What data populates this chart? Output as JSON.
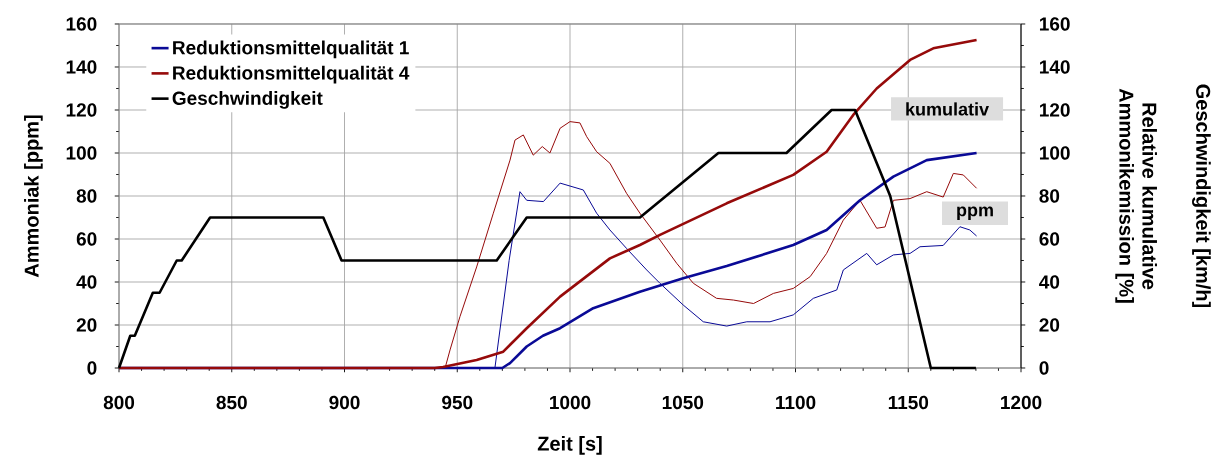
{
  "chart_data": {
    "type": "line",
    "xlabel": "Zeit [s]",
    "ylabel": "Ammoniak [ppm]",
    "y2label": "Relative kumulative Ammonikemission [%]",
    "y3label": "Geschwindigkeit [km/h]",
    "xlim": [
      800,
      1200
    ],
    "xticks": [
      800,
      850,
      900,
      950,
      1000,
      1050,
      1100,
      1150,
      1200
    ],
    "ylim": [
      0,
      160
    ],
    "yticks": [
      0,
      20,
      40,
      60,
      80,
      100,
      120,
      140,
      160
    ],
    "y2lim": [
      0,
      160
    ],
    "y2ticks": [
      0,
      20,
      40,
      60,
      80,
      100,
      120,
      140,
      160
    ],
    "grid": true,
    "legend": "top left",
    "series": [
      {
        "color": "#0a0a96",
        "axis": "y",
        "x": [
          800,
          966.7,
          973,
          977.8,
          980.8,
          988.2,
          995.6,
          1005.9,
          1011.8,
          1017.7,
          1025.1,
          1034,
          1039.9,
          1050.2,
          1059.1,
          1069.5,
          1078.4,
          1088.7,
          1099,
          1107.9,
          1118.3,
          1121.2,
          1131.6,
          1136,
          1143.4,
          1150.8,
          1155.2,
          1165.5,
          1172.9,
          1177.3,
          1180.3
        ],
        "values": [
          0,
          0,
          50,
          82,
          78,
          77.4,
          86,
          82.8,
          72,
          64.2,
          55.6,
          45.6,
          39.4,
          29.3,
          21.5,
          19.5,
          21.5,
          21.5,
          24.7,
          32.4,
          36.3,
          45.6,
          53.3,
          48,
          52.6,
          53.3,
          56.4,
          57,
          65.7,
          64.2,
          61.4
        ]
      },
      {
        "color": "#960a0a",
        "axis": "y",
        "x": [
          800,
          944.6,
          946.8,
          951.2,
          958.6,
          966,
          973.4,
          975.6,
          979.3,
          983.7,
          987.7,
          991.1,
          995.6,
          1000,
          1004.4,
          1007.4,
          1011.8,
          1017.7,
          1025.1,
          1031,
          1039.9,
          1047.3,
          1054.7,
          1065,
          1072.5,
          1081.4,
          1090.2,
          1099,
          1106.5,
          1113.8,
          1121.2,
          1128.6,
          1136,
          1139.7,
          1143.4,
          1150.8,
          1158.2,
          1165.5,
          1170,
          1174.4,
          1180.3
        ],
        "values": [
          0,
          0,
          8.4,
          23.9,
          47,
          72,
          96.7,
          106,
          108.4,
          99,
          103,
          100,
          111.5,
          114.6,
          114,
          107.6,
          100.6,
          95.2,
          81.2,
          72,
          59.5,
          48.7,
          39.4,
          32.4,
          31.6,
          30,
          34.7,
          37,
          42.5,
          53.3,
          68.8,
          78,
          65,
          65.6,
          78,
          78.8,
          82,
          79.5,
          90.5,
          89.8,
          83.6
        ]
      },
      {
        "name": "Reduktionsmittelqualität 1",
        "color": "#0a0a96",
        "axis": "y2",
        "x": [
          800,
          970,
          973.4,
          980.8,
          988,
          995.6,
          1010.3,
          1031,
          1050.2,
          1069.5,
          1099,
          1113.8,
          1128.6,
          1143.4,
          1158.2,
          1180.3
        ],
        "values": [
          0,
          0,
          2.3,
          10,
          15,
          18.5,
          27.8,
          35.5,
          41.7,
          47.4,
          57.2,
          64.2,
          78,
          89,
          96.7,
          100
        ]
      },
      {
        "name": "Reduktionsmittelqualität 4",
        "color": "#960a0a",
        "axis": "y2",
        "x": [
          800,
          940,
          943.7,
          958.6,
          970.4,
          980.8,
          995.6,
          1017.7,
          1031,
          1039.9,
          1069.5,
          1099,
          1113.8,
          1125.6,
          1136,
          1150.8,
          1161.1,
          1180.3
        ],
        "values": [
          0,
          0,
          0.5,
          3.7,
          7.6,
          18.5,
          33.2,
          51,
          57.2,
          61.9,
          76.6,
          89.8,
          100.6,
          117.7,
          130,
          143.3,
          148.7,
          152.6
        ]
      },
      {
        "name": "Geschwindigkeit",
        "color": "#000000",
        "axis": "y2",
        "x": [
          800,
          805,
          807,
          815,
          818,
          825.6,
          827.8,
          840.4,
          890.6,
          898.7,
          967.5,
          980.8,
          1031,
          1065.8,
          1096,
          1116,
          1126.4,
          1142,
          1160,
          1180
        ],
        "values": [
          0,
          15,
          15,
          35,
          35,
          50,
          50,
          70,
          70,
          50,
          50,
          70,
          70,
          100,
          100,
          120,
          120,
          80,
          0,
          0
        ]
      }
    ],
    "annotations": [
      "kumulativ",
      "ppm"
    ]
  }
}
